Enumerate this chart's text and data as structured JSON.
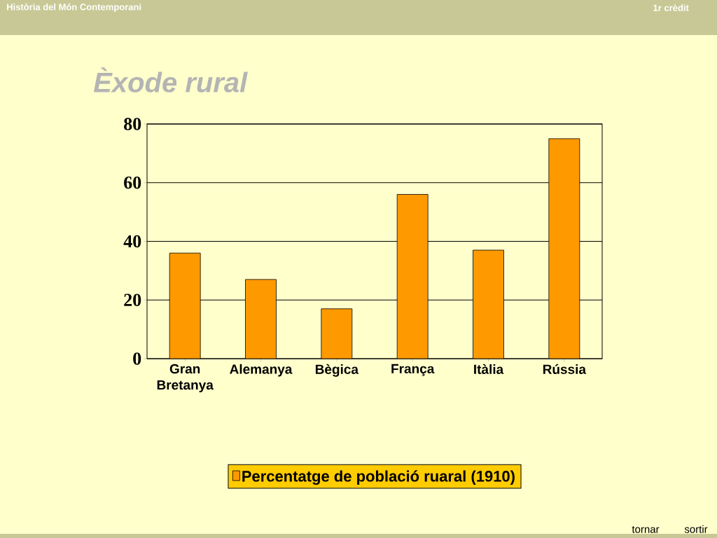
{
  "chart_data": {
    "type": "bar",
    "title": "Èxode rural",
    "categories": [
      "Gran Bretanya",
      "Alemanya",
      "Bègica",
      "França",
      "Itàlia",
      "Rússia"
    ],
    "series": [
      {
        "name": "Percentatge de població ruaral (1910)",
        "color": "#ff9900",
        "values": [
          36,
          27,
          17,
          56,
          37,
          75
        ]
      }
    ],
    "ylim": [
      0,
      80
    ],
    "yticks": [
      0,
      20,
      40,
      60,
      80
    ],
    "grid": "y",
    "legend": "bottom",
    "annotations": [
      "Història del Món Contemporani",
      "1r crèdit",
      "tornar",
      "sortir"
    ]
  }
}
